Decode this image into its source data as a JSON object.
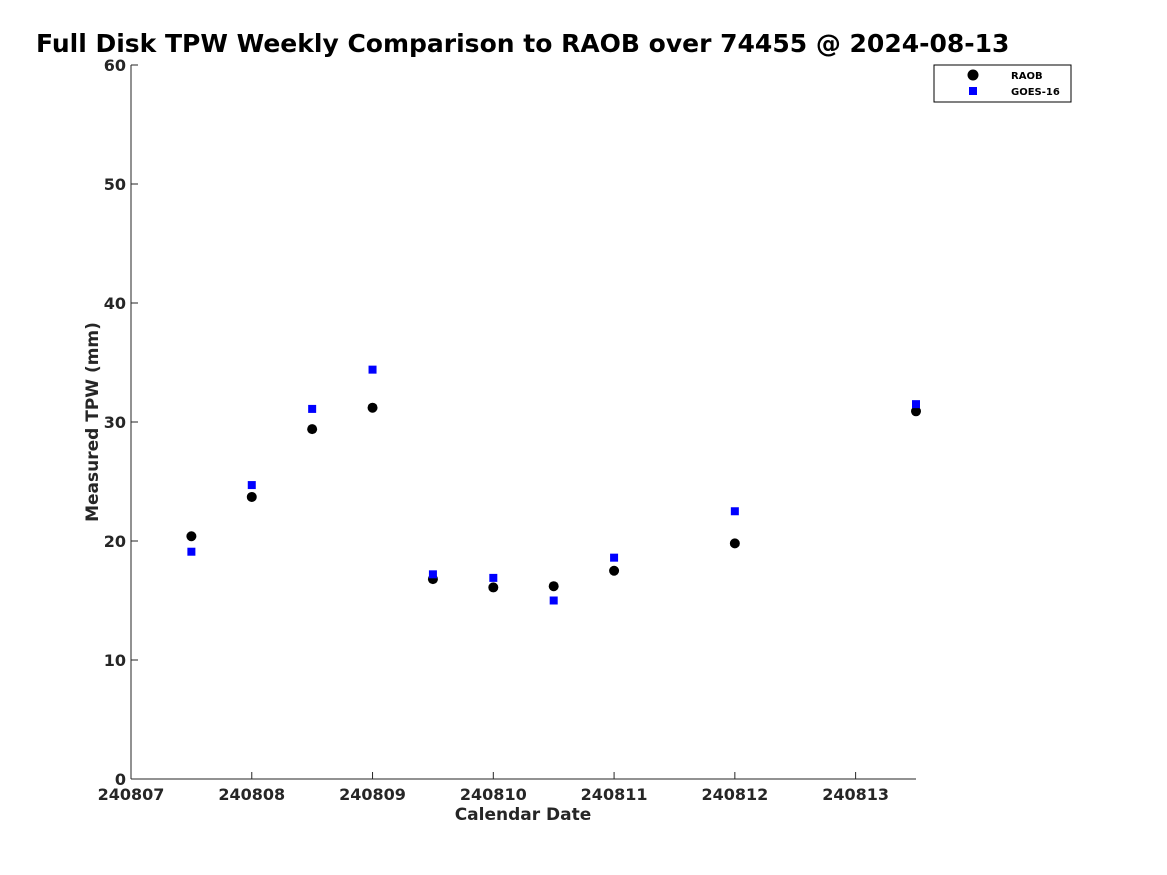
{
  "chart_data": {
    "type": "scatter",
    "title": "Full Disk TPW Weekly Comparison to RAOB over 74455 @ 2024-08-13",
    "xlabel": "Calendar Date",
    "ylabel": "Measured TPW (mm)",
    "xlim": [
      240807,
      240813.5
    ],
    "ylim": [
      0,
      60
    ],
    "xticks": [
      240807,
      240808,
      240809,
      240810,
      240811,
      240812,
      240813
    ],
    "xtick_labels": [
      "240807",
      "240808",
      "240809",
      "240810",
      "240811",
      "240812",
      "240813"
    ],
    "yticks": [
      0,
      10,
      20,
      30,
      40,
      50,
      60
    ],
    "ytick_labels": [
      "0",
      "10",
      "20",
      "30",
      "40",
      "50",
      "60"
    ],
    "grid": false,
    "legend_position": "top-right",
    "series": [
      {
        "name": "RAOB",
        "marker": "circle",
        "color": "#000000",
        "x": [
          240807.5,
          240808,
          240808.5,
          240809,
          240809.5,
          240810,
          240810.5,
          240811,
          240812,
          240813.5
        ],
        "y": [
          20.4,
          23.7,
          29.4,
          31.2,
          16.8,
          16.1,
          16.2,
          17.5,
          19.8,
          30.9
        ]
      },
      {
        "name": "GOES-16",
        "marker": "square",
        "color": "#0000ff",
        "x": [
          240807.5,
          240808,
          240808.5,
          240809,
          240809.5,
          240810,
          240810.5,
          240811,
          240812,
          240813.5
        ],
        "y": [
          19.1,
          24.7,
          31.1,
          34.4,
          17.2,
          16.9,
          15.0,
          18.6,
          22.5,
          31.5
        ]
      }
    ]
  }
}
